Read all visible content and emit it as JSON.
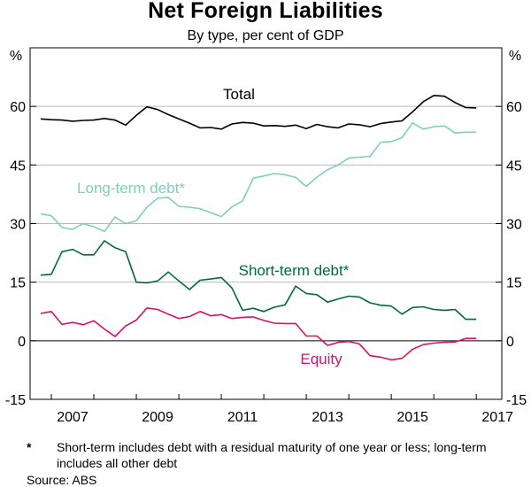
{
  "chart_data": {
    "type": "line",
    "title": "Net Foreign Liabilities",
    "subtitle": "By type, per cent of GDP",
    "ylabel_left": "%",
    "ylabel_right": "%",
    "ylim": [
      -15,
      75
    ],
    "yticks": [
      -15,
      0,
      15,
      30,
      45,
      60
    ],
    "xlim": [
      2006.5,
      2017.6
    ],
    "xticks": [
      2007,
      2009,
      2011,
      2013,
      2015,
      2017
    ],
    "grid": true,
    "x": [
      2006.75,
      2007.0,
      2007.25,
      2007.5,
      2007.75,
      2008.0,
      2008.25,
      2008.5,
      2008.75,
      2009.0,
      2009.25,
      2009.5,
      2009.75,
      2010.0,
      2010.25,
      2010.5,
      2010.75,
      2011.0,
      2011.25,
      2011.5,
      2011.75,
      2012.0,
      2012.25,
      2012.5,
      2012.75,
      2013.0,
      2013.25,
      2013.5,
      2013.75,
      2014.0,
      2014.25,
      2014.5,
      2014.75,
      2015.0,
      2015.25,
      2015.5,
      2015.75,
      2016.0,
      2016.25,
      2016.5,
      2016.75,
      2017.0
    ],
    "series": [
      {
        "name": "Total",
        "label": "Total",
        "color": "#000000",
        "values": [
          56.8,
          56.6,
          56.5,
          56.2,
          56.4,
          56.5,
          56.9,
          56.5,
          55.2,
          57.7,
          59.9,
          59.2,
          57.9,
          56.8,
          55.7,
          54.5,
          54.6,
          54.2,
          55.5,
          55.9,
          55.7,
          55.0,
          55.1,
          54.9,
          55.2,
          54.3,
          55.4,
          54.8,
          54.5,
          55.5,
          55.3,
          54.8,
          55.6,
          56.0,
          56.3,
          58.6,
          61.2,
          62.8,
          62.6,
          61.0,
          59.7,
          59.6
        ]
      },
      {
        "name": "Long-term debt*",
        "label": "Long-term debt*",
        "color": "#7dcfbc",
        "values": [
          32.5,
          32.0,
          29.0,
          28.5,
          30.0,
          29.2,
          28.0,
          31.7,
          30.0,
          30.7,
          34.2,
          36.5,
          36.7,
          34.4,
          34.2,
          33.8,
          32.8,
          31.8,
          34.3,
          35.8,
          41.6,
          42.2,
          42.8,
          42.5,
          41.8,
          39.5,
          41.9,
          43.8,
          45.0,
          46.8,
          47.0,
          47.2,
          50.8,
          51.0,
          52.0,
          55.8,
          54.2,
          54.8,
          55.0,
          53.2,
          53.4,
          53.4
        ]
      },
      {
        "name": "Short-term debt*",
        "label": "Short-term debt*",
        "color": "#006a3e",
        "values": [
          16.8,
          17.0,
          22.8,
          23.4,
          22.0,
          22.0,
          25.6,
          23.8,
          22.8,
          15.0,
          14.8,
          15.3,
          17.6,
          15.3,
          13.1,
          15.5,
          15.8,
          16.2,
          13.5,
          7.8,
          8.3,
          7.5,
          8.6,
          9.2,
          14.0,
          12.1,
          11.8,
          9.9,
          10.7,
          11.4,
          11.2,
          9.7,
          9.1,
          8.9,
          6.8,
          8.5,
          8.7,
          8.0,
          7.8,
          8.0,
          5.5,
          5.5
        ]
      },
      {
        "name": "Equity",
        "label": "Equity",
        "color": "#d4116b",
        "values": [
          7.0,
          7.5,
          4.2,
          4.7,
          4.1,
          5.1,
          3.0,
          1.1,
          3.8,
          5.3,
          8.4,
          8.0,
          6.8,
          5.7,
          6.2,
          7.5,
          6.4,
          6.7,
          5.7,
          6.0,
          6.1,
          5.2,
          4.5,
          4.4,
          4.4,
          1.2,
          1.2,
          -1.2,
          -0.4,
          -0.2,
          -0.8,
          -3.8,
          -4.2,
          -4.9,
          -4.5,
          -2.2,
          -1.0,
          -0.6,
          -0.4,
          -0.3,
          0.6,
          0.6
        ]
      }
    ],
    "footnote_marker": "*",
    "footnote": "Short-term includes debt with a residual maturity of one year or less; long-term includes all other debt",
    "source": "Source:   ABS"
  }
}
